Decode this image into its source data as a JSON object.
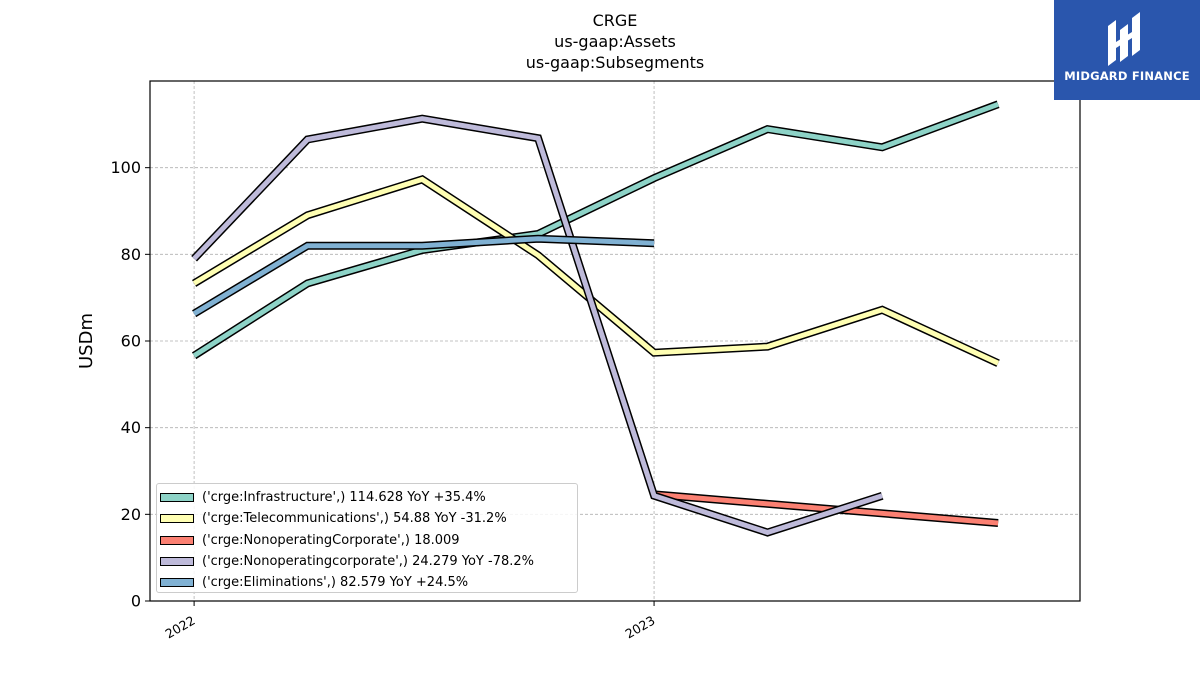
{
  "titles": [
    "CRGE",
    "us-gaap:Assets",
    "us-gaap:Subsegments"
  ],
  "brand": {
    "name": "MIDGARD FINANCE",
    "color": "#2a56ad"
  },
  "chart_data": {
    "type": "line",
    "ylabel": "USDm",
    "xlabel": "",
    "ylim": [
      0,
      120
    ],
    "yticks": [
      0,
      20,
      40,
      60,
      80,
      100
    ],
    "xticks": [
      {
        "label": "2022",
        "date": "2022-01-01"
      },
      {
        "label": "2023",
        "date": "2023-01-01"
      }
    ],
    "xlim": [
      "2021-11-27",
      "2023-12-05"
    ],
    "grid": true,
    "legend_position": "lower-left",
    "series": [
      {
        "name": "('crge:Infrastructure',) 114.628 YoY +35.4%",
        "color": "#8dd3c7",
        "x": [
          "2022-01-01",
          "2022-04-01",
          "2022-07-01",
          "2022-10-01",
          "2023-01-01",
          "2023-04-01",
          "2023-07-01",
          "2023-10-01"
        ],
        "y": [
          56.6,
          73.3,
          81.0,
          84.7,
          97.6,
          108.9,
          104.7,
          114.628
        ]
      },
      {
        "name": "('crge:Telecommunications',) 54.88 YoY -31.2%",
        "color": "#ffffb3",
        "x": [
          "2022-01-01",
          "2022-04-01",
          "2022-07-01",
          "2022-10-01",
          "2023-01-01",
          "2023-04-01",
          "2023-07-01",
          "2023-10-01"
        ],
        "y": [
          73.3,
          89.0,
          97.3,
          79.8,
          57.3,
          58.7,
          67.2,
          54.88
        ]
      },
      {
        "name": "('crge:NonoperatingCorporate',) 18.009",
        "color": "#fb8072",
        "x": [
          "2023-01-01",
          "2023-10-01"
        ],
        "y": [
          24.6,
          18.009
        ]
      },
      {
        "name": "('crge:Nonoperatingcorporate',) 24.279 YoY -78.2%",
        "color": "#bebada",
        "x": [
          "2022-01-01",
          "2022-04-01",
          "2022-07-01",
          "2022-10-01",
          "2023-01-01",
          "2023-04-01",
          "2023-07-01"
        ],
        "y": [
          79.0,
          106.5,
          111.3,
          106.8,
          24.3,
          15.8,
          24.279
        ]
      },
      {
        "name": "('crge:Eliminations',) 82.579 YoY +24.5%",
        "color": "#80b1d3",
        "x": [
          "2022-01-01",
          "2022-04-01",
          "2022-07-01",
          "2022-10-01",
          "2023-01-01"
        ],
        "y": [
          66.3,
          82.0,
          82.0,
          83.6,
          82.579
        ]
      }
    ]
  }
}
